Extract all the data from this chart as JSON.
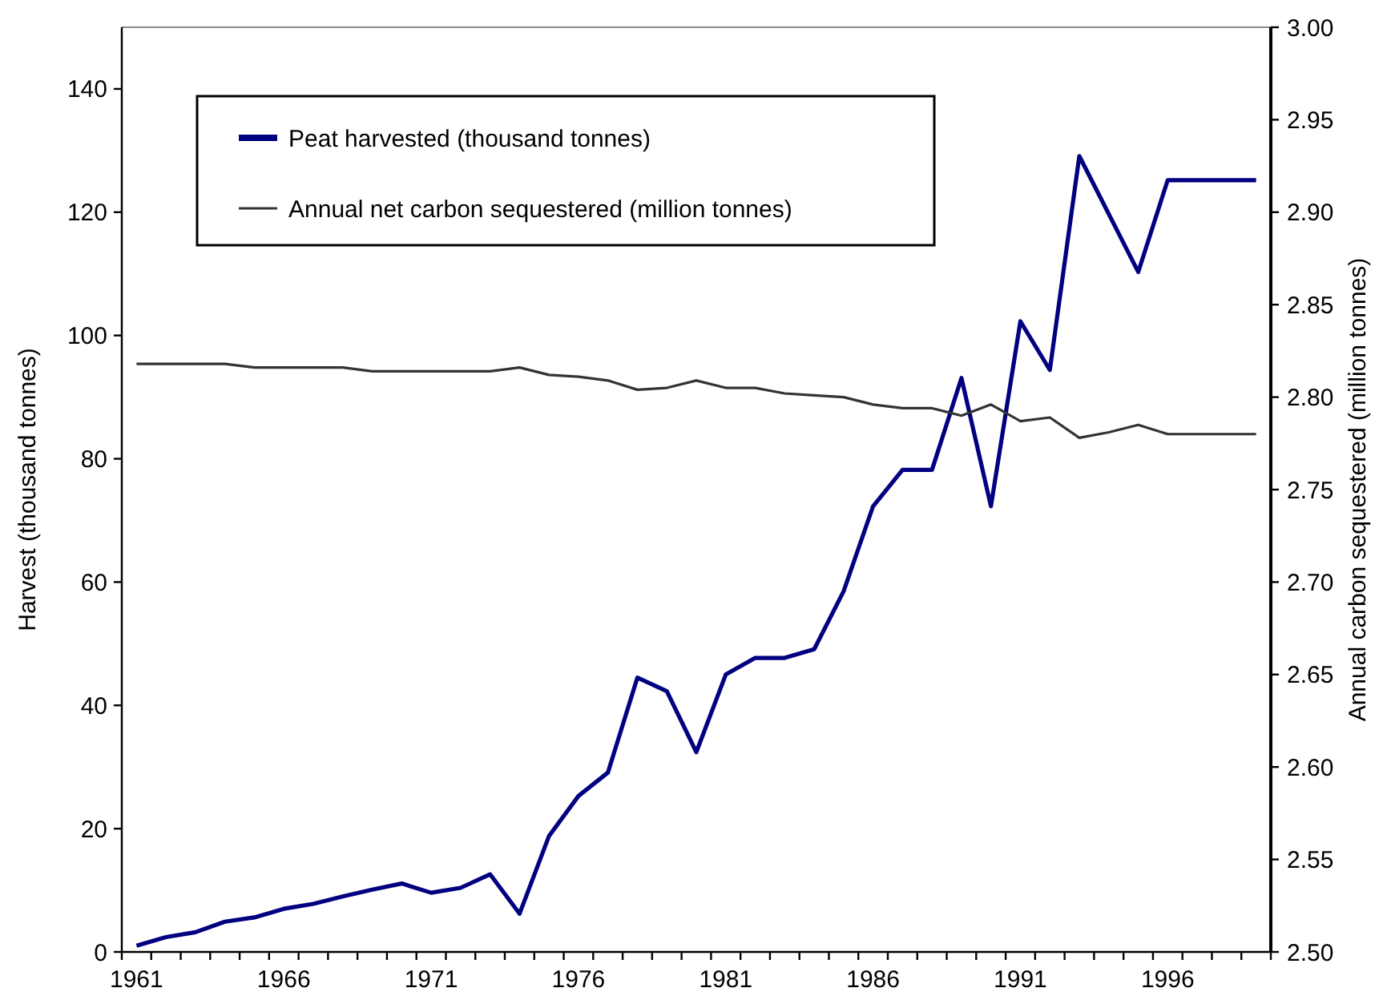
{
  "chart_data": {
    "type": "line",
    "ylabel": "Harvest (thousand tonnes)",
    "y2label": "Annual carbon sequestered (million tonnes)",
    "categories": [
      "1961",
      null,
      null,
      null,
      null,
      "1966",
      null,
      null,
      null,
      null,
      "1971",
      null,
      null,
      null,
      null,
      "1976",
      null,
      null,
      null,
      null,
      "1981",
      null,
      null,
      null,
      null,
      "1986",
      null,
      null,
      null,
      null,
      "1991",
      null,
      null,
      null,
      null,
      "1996",
      null,
      null,
      null
    ],
    "ylim": [
      0,
      150
    ],
    "yticks": [
      0,
      20,
      40,
      60,
      80,
      100,
      120,
      140
    ],
    "y2lim": [
      2.5,
      3.0
    ],
    "y2ticks": [
      {
        "value": 2.5,
        "label": "2.50"
      },
      {
        "value": 2.55,
        "label": "2.55"
      },
      {
        "value": 2.6,
        "label": "2.60"
      },
      {
        "value": 2.65,
        "label": "2.65"
      },
      {
        "value": 2.7,
        "label": "2.70"
      },
      {
        "value": 2.75,
        "label": "2.75"
      },
      {
        "value": 2.8,
        "label": "2.80"
      },
      {
        "value": 2.85,
        "label": "2.85"
      },
      {
        "value": 2.9,
        "label": "2.90"
      },
      {
        "value": 2.95,
        "label": "2.95"
      },
      {
        "value": 3.0,
        "label": "3.00"
      }
    ],
    "series": [
      {
        "name": "Peat harvested (thousand tonnes)",
        "color": "#000080",
        "values": [
          1,
          2.4,
          3.2,
          4.9,
          5.6,
          7.0,
          7.8,
          9.0,
          10.1,
          11.1,
          9.6,
          10.4,
          12.6,
          6.2,
          18.8,
          25.3,
          29.1,
          44.5,
          42.3,
          32.4,
          45.0,
          47.7,
          47.7,
          49.1,
          58.5,
          72.3,
          78.2,
          78.2,
          93.1,
          72.3,
          102.3,
          94.4,
          129.1,
          119.7,
          110.3,
          125.2,
          125.2,
          125.2,
          125.2
        ]
      },
      {
        "name": "Annual net carbon sequestered (million tonnes)",
        "color": "#333333",
        "axis": "y2",
        "values": [
          2.818,
          2.818,
          2.818,
          2.818,
          2.816,
          2.816,
          2.816,
          2.816,
          2.814,
          2.814,
          2.814,
          2.814,
          2.814,
          2.816,
          2.812,
          2.811,
          2.809,
          2.804,
          2.805,
          2.809,
          2.805,
          2.805,
          2.802,
          2.801,
          2.8,
          2.796,
          2.794,
          2.794,
          2.79,
          2.796,
          2.787,
          2.789,
          2.778,
          2.781,
          2.785,
          2.78,
          2.78,
          2.78,
          2.78
        ]
      }
    ],
    "legend": "top left",
    "grid": false
  }
}
